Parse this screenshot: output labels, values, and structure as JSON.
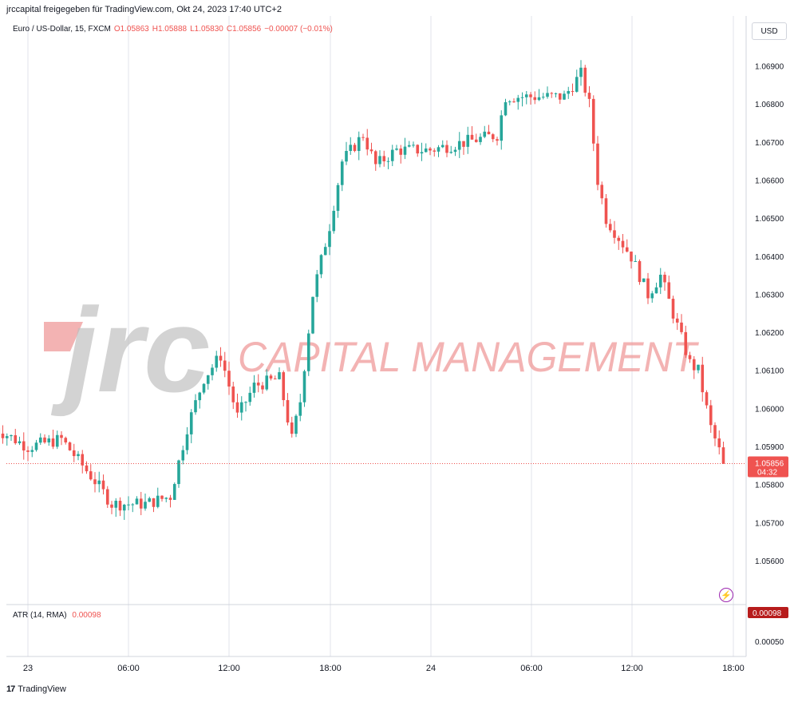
{
  "header": {
    "attribution": "jrccapital freigegeben für TradingView.com, Okt 24, 2023 17:40 UTC+2"
  },
  "legend": {
    "symbol": "Euro / US-Dollar, 15, FXCM",
    "open": "O1.05863",
    "high": "H1.05888",
    "low": "L1.05830",
    "close": "C1.05856",
    "change": "−0.00007 (−0.01%)"
  },
  "currency_button": "USD",
  "watermark": {
    "logo_text": "jrc",
    "company_text": "CAPITAL MANAGEMENT"
  },
  "last_price_label": {
    "price": "1.05856",
    "countdown": "04:32"
  },
  "atr": {
    "label": "ATR (14, RMA)",
    "value": "0.00098",
    "scale_tick": "0.00050"
  },
  "footer": {
    "brand": "TradingView",
    "logo_glyph": "17"
  },
  "icons": {
    "flash": "flash-icon"
  },
  "colors": {
    "up": "#26a69a",
    "down": "#ef5350",
    "grid": "#e0e3eb",
    "price_line": "#ef5350"
  },
  "chart_data": {
    "type": "candlestick",
    "title": "Euro / US-Dollar, 15, FXCM",
    "xlabel": "",
    "ylabel": "",
    "x_ticks": [
      "23",
      "06:00",
      "12:00",
      "18:00",
      "24",
      "06:00",
      "12:00",
      "18:00"
    ],
    "y_ticks": [
      "1.06900",
      "1.06800",
      "1.06700",
      "1.06600",
      "1.06500",
      "1.06400",
      "1.06300",
      "1.06200",
      "1.06100",
      "1.06000",
      "1.05900",
      "1.05800",
      "1.05700",
      "1.05600"
    ],
    "ylim": [
      1.0553,
      1.0703
    ],
    "current_price": 1.05856,
    "grid": true,
    "approximate_path": [
      {
        "time": "Oct 22 22:00",
        "price": 1.0595
      },
      {
        "time": "Oct 23 00:00",
        "price": 1.059
      },
      {
        "time": "Oct 23 02:00",
        "price": 1.0592
      },
      {
        "time": "Oct 23 04:00",
        "price": 1.0581
      },
      {
        "time": "Oct 23 05:00",
        "price": 1.0575
      },
      {
        "time": "Oct 23 07:00",
        "price": 1.0575
      },
      {
        "time": "Oct 23 08:30",
        "price": 1.0577
      },
      {
        "time": "Oct 23 09:30",
        "price": 1.0595
      },
      {
        "time": "Oct 23 10:30",
        "price": 1.0608
      },
      {
        "time": "Oct 23 11:30",
        "price": 1.0614
      },
      {
        "time": "Oct 23 12:30",
        "price": 1.0598
      },
      {
        "time": "Oct 23 13:30",
        "price": 1.0606
      },
      {
        "time": "Oct 23 15:00",
        "price": 1.0608
      },
      {
        "time": "Oct 23 15:45",
        "price": 1.0592
      },
      {
        "time": "Oct 23 16:15",
        "price": 1.0602
      },
      {
        "time": "Oct 23 17:00",
        "price": 1.063
      },
      {
        "time": "Oct 23 18:00",
        "price": 1.0648
      },
      {
        "time": "Oct 23 18:45",
        "price": 1.0665
      },
      {
        "time": "Oct 23 20:00",
        "price": 1.0672
      },
      {
        "time": "Oct 23 20:45",
        "price": 1.0664
      },
      {
        "time": "Oct 23 22:00",
        "price": 1.0668
      },
      {
        "time": "Oct 24 00:00",
        "price": 1.0668
      },
      {
        "time": "Oct 24 02:00",
        "price": 1.067
      },
      {
        "time": "Oct 24 04:00",
        "price": 1.0672
      },
      {
        "time": "Oct 24 04:30",
        "price": 1.0682
      },
      {
        "time": "Oct 24 06:00",
        "price": 1.0682
      },
      {
        "time": "Oct 24 08:00",
        "price": 1.0682
      },
      {
        "time": "Oct 24 09:00",
        "price": 1.0688
      },
      {
        "time": "Oct 24 09:30",
        "price": 1.068
      },
      {
        "time": "Oct 24 10:00",
        "price": 1.066
      },
      {
        "time": "Oct 24 10:30",
        "price": 1.065
      },
      {
        "time": "Oct 24 12:00",
        "price": 1.064
      },
      {
        "time": "Oct 24 13:00",
        "price": 1.063
      },
      {
        "time": "Oct 24 13:45",
        "price": 1.0635
      },
      {
        "time": "Oct 24 14:30",
        "price": 1.0625
      },
      {
        "time": "Oct 24 15:30",
        "price": 1.0612
      },
      {
        "time": "Oct 24 16:00",
        "price": 1.061
      },
      {
        "time": "Oct 24 16:45",
        "price": 1.0595
      },
      {
        "time": "Oct 24 17:30",
        "price": 1.0586
      }
    ]
  }
}
